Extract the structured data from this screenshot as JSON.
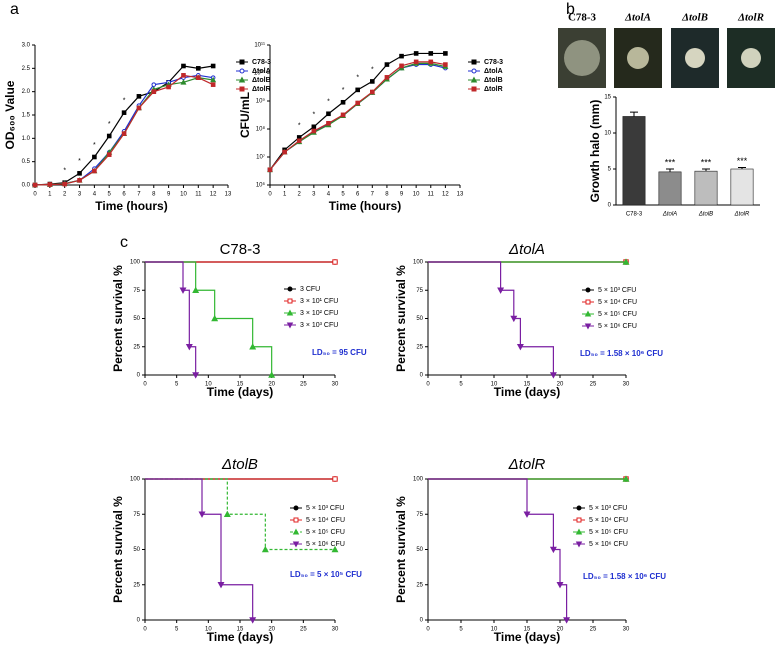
{
  "chart_data": [
    {
      "type": "line",
      "panel_label": "a",
      "xlabel": "Time (hours)",
      "ylabel": "OD₆₀₀ Value",
      "x": [
        0,
        1,
        2,
        3,
        4,
        5,
        6,
        7,
        8,
        9,
        10,
        11,
        12
      ],
      "xlim": [
        0,
        13
      ],
      "xticks": [
        0,
        1,
        2,
        3,
        4,
        5,
        6,
        7,
        8,
        9,
        10,
        11,
        12,
        13
      ],
      "ylim": [
        0,
        3
      ],
      "yticks": [
        {
          "value": 0,
          "label": "0.0"
        },
        0.5,
        {
          "value": 1,
          "label": "1.0"
        },
        1.5,
        {
          "value": 2,
          "label": "2.0"
        },
        2.5,
        {
          "value": 3,
          "label": "3.0"
        }
      ],
      "series": [
        {
          "name": "C78-3",
          "color": "#000000",
          "marker": "square",
          "values": [
            0,
            0.02,
            0.05,
            0.25,
            0.6,
            1.05,
            1.55,
            1.9,
            2.0,
            2.2,
            2.55,
            2.5,
            2.55
          ]
        },
        {
          "name": "ΔtolA",
          "color": "#1f2fd0",
          "marker": "circle-open",
          "values": [
            0,
            0.01,
            0.03,
            0.1,
            0.35,
            0.7,
            1.15,
            1.7,
            2.15,
            2.2,
            2.3,
            2.35,
            2.3
          ]
        },
        {
          "name": "ΔtolB",
          "color": "#2e8b2e",
          "marker": "triangle",
          "values": [
            0,
            0.01,
            0.03,
            0.1,
            0.3,
            0.7,
            1.1,
            1.65,
            2.05,
            2.15,
            2.2,
            2.3,
            2.25
          ]
        },
        {
          "name": "ΔtolR",
          "color": "#c0282a",
          "marker": "square",
          "values": [
            0,
            0.01,
            0.02,
            0.1,
            0.3,
            0.65,
            1.1,
            1.65,
            2.0,
            2.1,
            2.35,
            2.3,
            2.15
          ]
        }
      ],
      "significance": [
        {
          "x": 2,
          "label": "*"
        },
        {
          "x": 3,
          "label": "*"
        },
        {
          "x": 4,
          "label": "*"
        },
        {
          "x": 5,
          "label": "*"
        },
        {
          "x": 6,
          "label": "*"
        }
      ]
    },
    {
      "type": "line",
      "yscale": "log",
      "xlabel": "Time (hours)",
      "ylabel": "CFU/mL",
      "x": [
        0,
        1,
        2,
        3,
        4,
        5,
        6,
        7,
        8,
        9,
        10,
        11,
        12
      ],
      "xlim": [
        0,
        13
      ],
      "xticks": [
        0,
        1,
        2,
        3,
        4,
        5,
        6,
        7,
        8,
        9,
        10,
        11,
        12,
        13
      ],
      "ylim": [
        1000000,
        100000000000
      ],
      "yticks": [
        {
          "value": 1000000,
          "label": "10⁶"
        },
        {
          "value": 10000000,
          "label": "10⁷"
        },
        {
          "value": 100000000,
          "label": "10⁸"
        },
        {
          "value": 1000000000,
          "label": "10⁹"
        },
        {
          "value": 10000000000,
          "label": "10¹⁰"
        },
        {
          "value": 100000000000,
          "label": "10¹¹"
        }
      ],
      "series": [
        {
          "name": "C78-3",
          "color": "#000000",
          "marker": "square",
          "values": [
            3500000,
            18000000,
            50000000,
            120000000,
            350000000,
            900000000,
            2500000000,
            5000000000,
            20000000000,
            40000000000,
            50000000000,
            50000000000,
            50000000000
          ]
        },
        {
          "name": "ΔtolA",
          "color": "#1f2fd0",
          "marker": "circle-open",
          "values": [
            3500000,
            15000000,
            35000000,
            80000000,
            150000000,
            300000000,
            800000000,
            2000000000,
            6000000000,
            15000000000,
            20000000000,
            20000000000,
            15000000000
          ]
        },
        {
          "name": "ΔtolB",
          "color": "#2e8b2e",
          "marker": "triangle",
          "values": [
            3500000,
            15000000,
            35000000,
            75000000,
            140000000,
            300000000,
            800000000,
            2000000000,
            6000000000,
            15000000000,
            22000000000,
            22000000000,
            17000000000
          ]
        },
        {
          "name": "ΔtolR",
          "color": "#c0282a",
          "marker": "square",
          "values": [
            3500000,
            15000000,
            38000000,
            85000000,
            160000000,
            320000000,
            850000000,
            2100000000,
            7000000000,
            18000000000,
            25000000000,
            25000000000,
            20000000000
          ]
        }
      ],
      "significance": [
        {
          "x": 2,
          "label": "*"
        },
        {
          "x": 3,
          "label": "*"
        },
        {
          "x": 4,
          "label": "*"
        },
        {
          "x": 5,
          "label": "*"
        },
        {
          "x": 6,
          "label": "*"
        },
        {
          "x": 7,
          "label": "*"
        }
      ]
    },
    {
      "type": "bar",
      "panel_label": "b",
      "image_labels": [
        "C78-3",
        "ΔtolA",
        "ΔtolB",
        "ΔtolR"
      ],
      "ylabel": "Growth halo (mm)",
      "categories": [
        "C78-3",
        "ΔtolA",
        "ΔtolB",
        "ΔtolR"
      ],
      "values": [
        12.3,
        4.6,
        4.7,
        5.0
      ],
      "errors": [
        0.6,
        0.4,
        0.3,
        0.2
      ],
      "colors": [
        "#3a3a3a",
        "#8c8c8c",
        "#bdbdbd",
        "#e4e4e4"
      ],
      "ylim": [
        0,
        15
      ],
      "yticks": [
        0,
        5,
        10,
        15
      ],
      "significance": [
        {
          "category": "ΔtolA",
          "label": "***"
        },
        {
          "category": "ΔtolB",
          "label": "***"
        },
        {
          "category": "ΔtolR",
          "label": "***"
        }
      ]
    },
    {
      "type": "step",
      "panel_label": "c",
      "title": "C78-3",
      "xlabel": "Time (days)",
      "ylabel": "Percent survival %",
      "xlim": [
        0,
        30
      ],
      "xticks": [
        0,
        5,
        10,
        15,
        20,
        25,
        30
      ],
      "ylim": [
        0,
        100
      ],
      "yticks": [
        0,
        25,
        50,
        75,
        100
      ],
      "annotation": "LD₅₀ = 95 CFU",
      "series": [
        {
          "name": "3 CFU",
          "color": "#000000",
          "marker": "circle",
          "x": [
            0,
            30
          ],
          "values": [
            100,
            100
          ]
        },
        {
          "name": "3 × 10¹ CFU",
          "color": "#e02020",
          "marker": "square-open",
          "x": [
            0,
            30
          ],
          "values": [
            100,
            100
          ]
        },
        {
          "name": "3 × 10² CFU",
          "color": "#33b833",
          "marker": "triangle",
          "x": [
            0,
            8,
            11,
            17,
            20
          ],
          "values": [
            100,
            75,
            50,
            25,
            0
          ]
        },
        {
          "name": "3 × 10³ CFU",
          "color": "#7a1fa2",
          "marker": "triangle-down",
          "x": [
            0,
            6,
            7,
            8
          ],
          "values": [
            100,
            75,
            25,
            0
          ]
        }
      ]
    },
    {
      "type": "step",
      "title": "ΔtolA",
      "xlabel": "Time (days)",
      "ylabel": "Percent survival %",
      "xlim": [
        0,
        30
      ],
      "xticks": [
        0,
        5,
        10,
        15,
        20,
        25,
        30
      ],
      "ylim": [
        0,
        100
      ],
      "yticks": [
        0,
        25,
        50,
        75,
        100
      ],
      "annotation": "LD₅₀ = 1.58 × 10⁶ CFU",
      "series": [
        {
          "name": "5 × 10³ CFU",
          "color": "#000000",
          "marker": "circle",
          "x": [
            0,
            30
          ],
          "values": [
            100,
            100
          ]
        },
        {
          "name": "5 × 10⁴ CFU",
          "color": "#e02020",
          "marker": "square-open",
          "x": [
            0,
            30
          ],
          "values": [
            100,
            100
          ]
        },
        {
          "name": "5 × 10⁵ CFU",
          "color": "#33b833",
          "marker": "triangle",
          "x": [
            0,
            30
          ],
          "values": [
            100,
            100
          ]
        },
        {
          "name": "5 × 10⁶ CFU",
          "color": "#7a1fa2",
          "marker": "triangle-down",
          "x": [
            0,
            11,
            13,
            14,
            19
          ],
          "values": [
            100,
            75,
            50,
            25,
            0
          ]
        }
      ]
    },
    {
      "type": "step",
      "title": "ΔtolB",
      "xlabel": "Time (days)",
      "ylabel": "Percent survival %",
      "xlim": [
        0,
        30
      ],
      "xticks": [
        0,
        5,
        10,
        15,
        20,
        25,
        30
      ],
      "ylim": [
        0,
        100
      ],
      "yticks": [
        0,
        25,
        50,
        75,
        100
      ],
      "annotation": "LD₅₀ = 5 × 10⁵ CFU",
      "series": [
        {
          "name": "5 × 10³ CFU",
          "color": "#000000",
          "marker": "circle",
          "x": [
            0,
            30
          ],
          "values": [
            100,
            100
          ]
        },
        {
          "name": "5 × 10⁴ CFU",
          "color": "#e02020",
          "marker": "square-open",
          "x": [
            0,
            30
          ],
          "values": [
            100,
            100
          ]
        },
        {
          "name": "5 × 10⁵ CFU",
          "color": "#33b833",
          "marker": "triangle",
          "dashed": true,
          "x": [
            0,
            13,
            19,
            30
          ],
          "values": [
            100,
            75,
            50,
            50
          ]
        },
        {
          "name": "5 × 10⁶ CFU",
          "color": "#7a1fa2",
          "marker": "triangle-down",
          "x": [
            0,
            9,
            12,
            17
          ],
          "values": [
            100,
            75,
            25,
            0
          ]
        }
      ]
    },
    {
      "type": "step",
      "title": "ΔtolR",
      "xlabel": "Time (days)",
      "ylabel": "Percent survival %",
      "xlim": [
        0,
        30
      ],
      "xticks": [
        0,
        5,
        10,
        15,
        20,
        25,
        30
      ],
      "ylim": [
        0,
        100
      ],
      "yticks": [
        0,
        25,
        50,
        75,
        100
      ],
      "annotation": "LD₅₀ = 1.58 × 10⁶ CFU",
      "series": [
        {
          "name": "5 × 10³ CFU",
          "color": "#000000",
          "marker": "circle",
          "x": [
            0,
            30
          ],
          "values": [
            100,
            100
          ]
        },
        {
          "name": "5 × 10⁴ CFU",
          "color": "#e02020",
          "marker": "square-open",
          "x": [
            0,
            30
          ],
          "values": [
            100,
            100
          ]
        },
        {
          "name": "5 × 10⁵ CFU",
          "color": "#33b833",
          "marker": "triangle",
          "x": [
            0,
            30
          ],
          "values": [
            100,
            100
          ]
        },
        {
          "name": "5 × 10⁶ CFU",
          "color": "#7a1fa2",
          "marker": "triangle-down",
          "x": [
            0,
            15,
            19,
            20,
            21
          ],
          "values": [
            100,
            75,
            50,
            25,
            0
          ]
        }
      ]
    }
  ]
}
